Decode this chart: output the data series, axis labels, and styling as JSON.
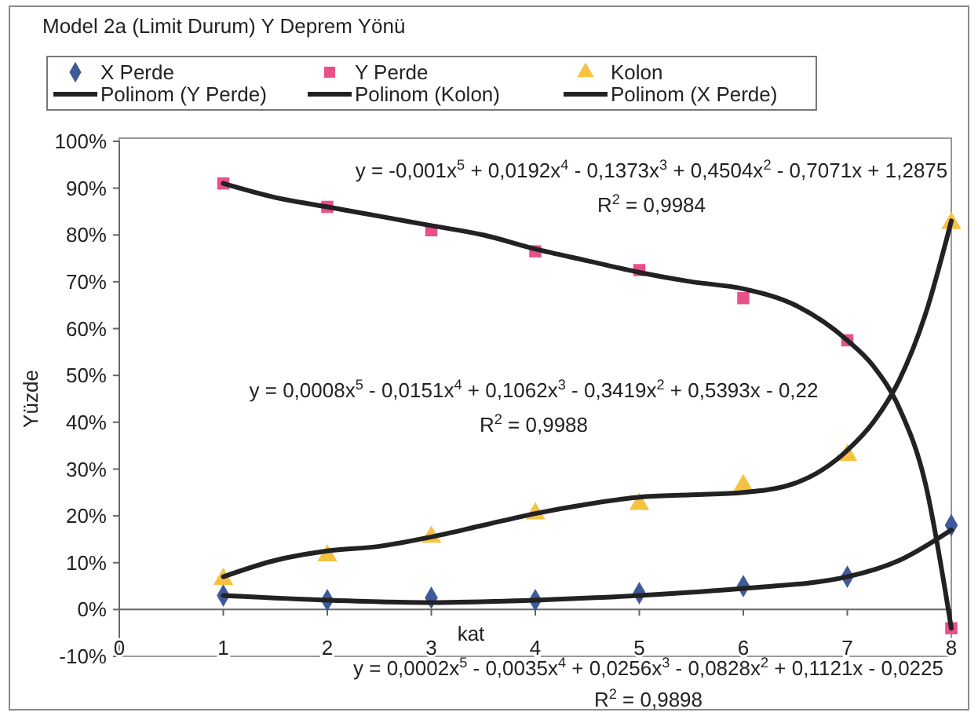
{
  "chart_data": {
    "type": "scatter",
    "title": "Model 2a (Limit Durum) Y Deprem Yönü",
    "xlabel": "kat",
    "ylabel": "Yüzde",
    "x": [
      1,
      2,
      3,
      4,
      5,
      6,
      7,
      8
    ],
    "xlim": [
      0,
      8
    ],
    "xticks": [
      0,
      1,
      2,
      3,
      4,
      5,
      6,
      7,
      8
    ],
    "ylim": [
      -10,
      100
    ],
    "yticks": [
      {
        "value": -10,
        "label": "-10%"
      },
      {
        "value": 0,
        "label": "0%"
      },
      {
        "value": 10,
        "label": "10%"
      },
      {
        "value": 20,
        "label": "20%"
      },
      {
        "value": 30,
        "label": "30%"
      },
      {
        "value": 40,
        "label": "40%"
      },
      {
        "value": 50,
        "label": "50%"
      },
      {
        "value": 60,
        "label": "60%"
      },
      {
        "value": 70,
        "label": "70%"
      },
      {
        "value": 80,
        "label": "80%"
      },
      {
        "value": 90,
        "label": "90%"
      },
      {
        "value": 100,
        "label": "100%"
      }
    ],
    "legend": "top",
    "series": [
      {
        "name": "X Perde",
        "marker": "diamond",
        "color": "#3f5a9a",
        "values": [
          3,
          2,
          2.5,
          2,
          3.5,
          5,
          7,
          18
        ]
      },
      {
        "name": "Polinom (Y Perde)",
        "type": "line",
        "marker": "none",
        "color": "#222222",
        "x": [
          1,
          1.5,
          2,
          2.5,
          3,
          3.5,
          4,
          4.5,
          5,
          5.5,
          6,
          6.5,
          7,
          7.25,
          7.5,
          7.75,
          8
        ],
        "values": [
          91,
          88,
          86,
          84,
          82,
          80,
          77,
          74.5,
          72,
          70,
          68.5,
          65,
          57.5,
          52,
          43,
          27,
          -4
        ]
      },
      {
        "name": "Y Perde",
        "marker": "square",
        "color": "#e8508a",
        "values": [
          91,
          86,
          81,
          76.5,
          72.5,
          66.5,
          57.5,
          -4
        ]
      },
      {
        "name": "Polinom (Kolon)",
        "type": "line",
        "marker": "none",
        "color": "#222222",
        "x": [
          1,
          1.5,
          2,
          2.5,
          3,
          3.5,
          4,
          4.5,
          5,
          5.5,
          6,
          6.5,
          7,
          7.25,
          7.5,
          7.75,
          8
        ],
        "values": [
          7,
          10.5,
          12.5,
          13.5,
          15.5,
          18,
          20.5,
          22.5,
          24,
          24.5,
          25,
          27,
          34,
          40,
          49,
          63,
          83
        ]
      },
      {
        "name": "Kolon",
        "marker": "triangle",
        "color": "#f5c242",
        "values": [
          6.5,
          11.5,
          15.5,
          20.5,
          22.5,
          26.5,
          33,
          82.5
        ]
      },
      {
        "name": "Polinom (X Perde)",
        "type": "line",
        "marker": "none",
        "color": "#222222",
        "x": [
          1,
          2,
          3,
          4,
          5,
          6,
          7,
          7.5,
          8
        ],
        "values": [
          3,
          2,
          1.5,
          2,
          3,
          4.5,
          7,
          10.5,
          17
        ]
      }
    ],
    "annotations": [
      "y = -0,001x$^{5}$ + 0,0192x$^{4}$ - 0,1373x$^{3}$ + 0,4504x$^{2}$ - 0,7071x + 1,2875",
      "R$^{2}$ = 0,9984",
      "y = 0,0008x$^{5}$ - 0,0151x$^{4}$ + 0,1062x$^{3}$ - 0,3419x$^{2}$ + 0,5393x - 0,22",
      "R$^{2}$ = 0,9988",
      "y = 0,0002x$^{5}$ - 0,0035x$^{4}$ + 0,0256x$^{3}$ - 0,0828x$^{2}$ + 0,1121x - 0,0225",
      "R$^{2}$ = 0,9898"
    ]
  }
}
